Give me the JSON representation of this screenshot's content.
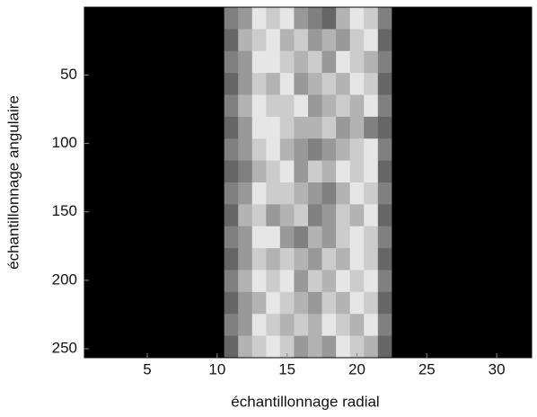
{
  "chart_data": {
    "type": "heatmap",
    "xlabel": "échantillonnage radial",
    "ylabel": "échantillonnage angulaire",
    "x": [
      1,
      2,
      3,
      4,
      5,
      6,
      7,
      8,
      9,
      10,
      11,
      12,
      13,
      14,
      15,
      16,
      17,
      18,
      19,
      20,
      21,
      22,
      23,
      24,
      25,
      26,
      27,
      28,
      29,
      30,
      31,
      32
    ],
    "ybins": [
      0.5,
      16.5,
      32.5,
      48.5,
      64.5,
      80.5,
      96.5,
      112.5,
      128.5,
      144.5,
      160.5,
      176.5,
      192.5,
      208.5,
      224.5,
      240.5,
      256.5
    ],
    "xlim": [
      0.5,
      32.5
    ],
    "ylim": [
      256.5,
      0.5
    ],
    "clim": [
      0,
      1
    ],
    "xticks": [
      5,
      10,
      15,
      20,
      25,
      30
    ],
    "yticks": [
      50,
      100,
      150,
      200,
      250
    ],
    "z": [
      [
        0,
        0,
        0,
        0,
        0,
        0,
        0,
        0,
        0,
        0,
        0.5,
        0.6,
        0.9,
        0.8,
        0.9,
        0.6,
        0.5,
        0.4,
        0.7,
        0.9,
        0.8,
        0.5,
        0,
        0,
        0,
        0,
        0,
        0,
        0,
        0,
        0,
        0
      ],
      [
        0,
        0,
        0,
        0,
        0,
        0,
        0,
        0,
        0,
        0,
        0.4,
        0.7,
        0.8,
        0.9,
        0.7,
        0.8,
        0.6,
        0.7,
        0.6,
        0.8,
        0.9,
        0.4,
        0,
        0,
        0,
        0,
        0,
        0,
        0,
        0,
        0,
        0
      ],
      [
        0,
        0,
        0,
        0,
        0,
        0,
        0,
        0,
        0,
        0,
        0.5,
        0.6,
        0.9,
        0.9,
        0.8,
        0.7,
        0.8,
        0.6,
        0.9,
        0.8,
        0.7,
        0.5,
        0,
        0,
        0,
        0,
        0,
        0,
        0,
        0,
        0,
        0
      ],
      [
        0,
        0,
        0,
        0,
        0,
        0,
        0,
        0,
        0,
        0,
        0.4,
        0.6,
        0.8,
        0.7,
        0.9,
        0.6,
        0.7,
        0.8,
        0.7,
        0.9,
        0.8,
        0.4,
        0,
        0,
        0,
        0,
        0,
        0,
        0,
        0,
        0,
        0
      ],
      [
        0,
        0,
        0,
        0,
        0,
        0,
        0,
        0,
        0,
        0,
        0.5,
        0.7,
        0.9,
        0.8,
        0.8,
        0.9,
        0.6,
        0.7,
        0.8,
        0.7,
        0.9,
        0.5,
        0,
        0,
        0,
        0,
        0,
        0,
        0,
        0,
        0,
        0
      ],
      [
        0,
        0,
        0,
        0,
        0,
        0,
        0,
        0,
        0,
        0,
        0.4,
        0.6,
        0.9,
        0.9,
        0.8,
        0.7,
        0.7,
        0.8,
        0.6,
        0.7,
        0.5,
        0.4,
        0,
        0,
        0,
        0,
        0,
        0,
        0,
        0,
        0,
        0
      ],
      [
        0,
        0,
        0,
        0,
        0,
        0,
        0,
        0,
        0,
        0,
        0.5,
        0.6,
        0.8,
        0.9,
        0.7,
        0.6,
        0.5,
        0.6,
        0.7,
        0.8,
        0.9,
        0.5,
        0,
        0,
        0,
        0,
        0,
        0,
        0,
        0,
        0,
        0
      ],
      [
        0,
        0,
        0,
        0,
        0,
        0,
        0,
        0,
        0,
        0,
        0.4,
        0.5,
        0.7,
        0.8,
        0.9,
        0.6,
        0.8,
        0.7,
        0.9,
        0.8,
        0.9,
        0.4,
        0,
        0,
        0,
        0,
        0,
        0,
        0,
        0,
        0,
        0
      ],
      [
        0,
        0,
        0,
        0,
        0,
        0,
        0,
        0,
        0,
        0,
        0.5,
        0.6,
        0.9,
        0.8,
        0.8,
        0.7,
        0.6,
        0.5,
        0.7,
        0.9,
        0.8,
        0.5,
        0,
        0,
        0,
        0,
        0,
        0,
        0,
        0,
        0,
        0
      ],
      [
        0,
        0,
        0,
        0,
        0,
        0,
        0,
        0,
        0,
        0,
        0.4,
        0.7,
        0.8,
        0.6,
        0.7,
        0.8,
        0.5,
        0.6,
        0.8,
        0.7,
        0.9,
        0.4,
        0,
        0,
        0,
        0,
        0,
        0,
        0,
        0,
        0,
        0
      ],
      [
        0,
        0,
        0,
        0,
        0,
        0,
        0,
        0,
        0,
        0,
        0.5,
        0.6,
        0.9,
        0.9,
        0.6,
        0.5,
        0.7,
        0.6,
        0.8,
        0.9,
        0.8,
        0.5,
        0,
        0,
        0,
        0,
        0,
        0,
        0,
        0,
        0,
        0
      ],
      [
        0,
        0,
        0,
        0,
        0,
        0,
        0,
        0,
        0,
        0,
        0.4,
        0.6,
        0.8,
        0.7,
        0.8,
        0.7,
        0.6,
        0.8,
        0.7,
        0.9,
        0.8,
        0.4,
        0,
        0,
        0,
        0,
        0,
        0,
        0,
        0,
        0,
        0
      ],
      [
        0,
        0,
        0,
        0,
        0,
        0,
        0,
        0,
        0,
        0,
        0.5,
        0.7,
        0.9,
        0.8,
        0.9,
        0.6,
        0.8,
        0.7,
        0.9,
        0.8,
        0.9,
        0.5,
        0,
        0,
        0,
        0,
        0,
        0,
        0,
        0,
        0,
        0
      ],
      [
        0,
        0,
        0,
        0,
        0,
        0,
        0,
        0,
        0,
        0,
        0.4,
        0.6,
        0.7,
        0.9,
        0.8,
        0.7,
        0.6,
        0.8,
        0.7,
        0.9,
        0.8,
        0.4,
        0,
        0,
        0,
        0,
        0,
        0,
        0,
        0,
        0,
        0
      ],
      [
        0,
        0,
        0,
        0,
        0,
        0,
        0,
        0,
        0,
        0,
        0.5,
        0.6,
        0.9,
        0.8,
        0.7,
        0.8,
        0.7,
        0.9,
        0.8,
        0.7,
        0.9,
        0.5,
        0,
        0,
        0,
        0,
        0,
        0,
        0,
        0,
        0,
        0
      ],
      [
        0,
        0,
        0,
        0,
        0,
        0,
        0,
        0,
        0,
        0,
        0.4,
        0.7,
        0.8,
        0.9,
        0.8,
        0.6,
        0.7,
        0.6,
        0.9,
        0.8,
        0.7,
        0.4,
        0,
        0,
        0,
        0,
        0,
        0,
        0,
        0,
        0,
        0
      ]
    ]
  }
}
